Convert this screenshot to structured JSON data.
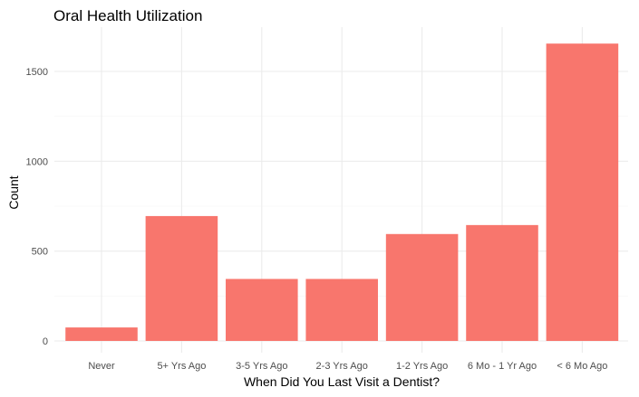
{
  "chart_data": {
    "type": "bar",
    "title": "Oral Health Utilization",
    "xlabel": "When Did You Last Visit a Dentist?",
    "ylabel": "Count",
    "categories": [
      "Never",
      "5+ Yrs Ago",
      "3-5 Yrs Ago",
      "2-3 Yrs Ago",
      "1-2 Yrs Ago",
      "6 Mo - 1 Yr Ago",
      "< 6 Mo Ago"
    ],
    "values": [
      75,
      695,
      345,
      345,
      595,
      645,
      1655
    ],
    "ylim": [
      0,
      1750
    ],
    "yticks": [
      0,
      500,
      1000,
      1500
    ],
    "bar_color": "#f8766d",
    "grid": true,
    "legend": "none"
  }
}
